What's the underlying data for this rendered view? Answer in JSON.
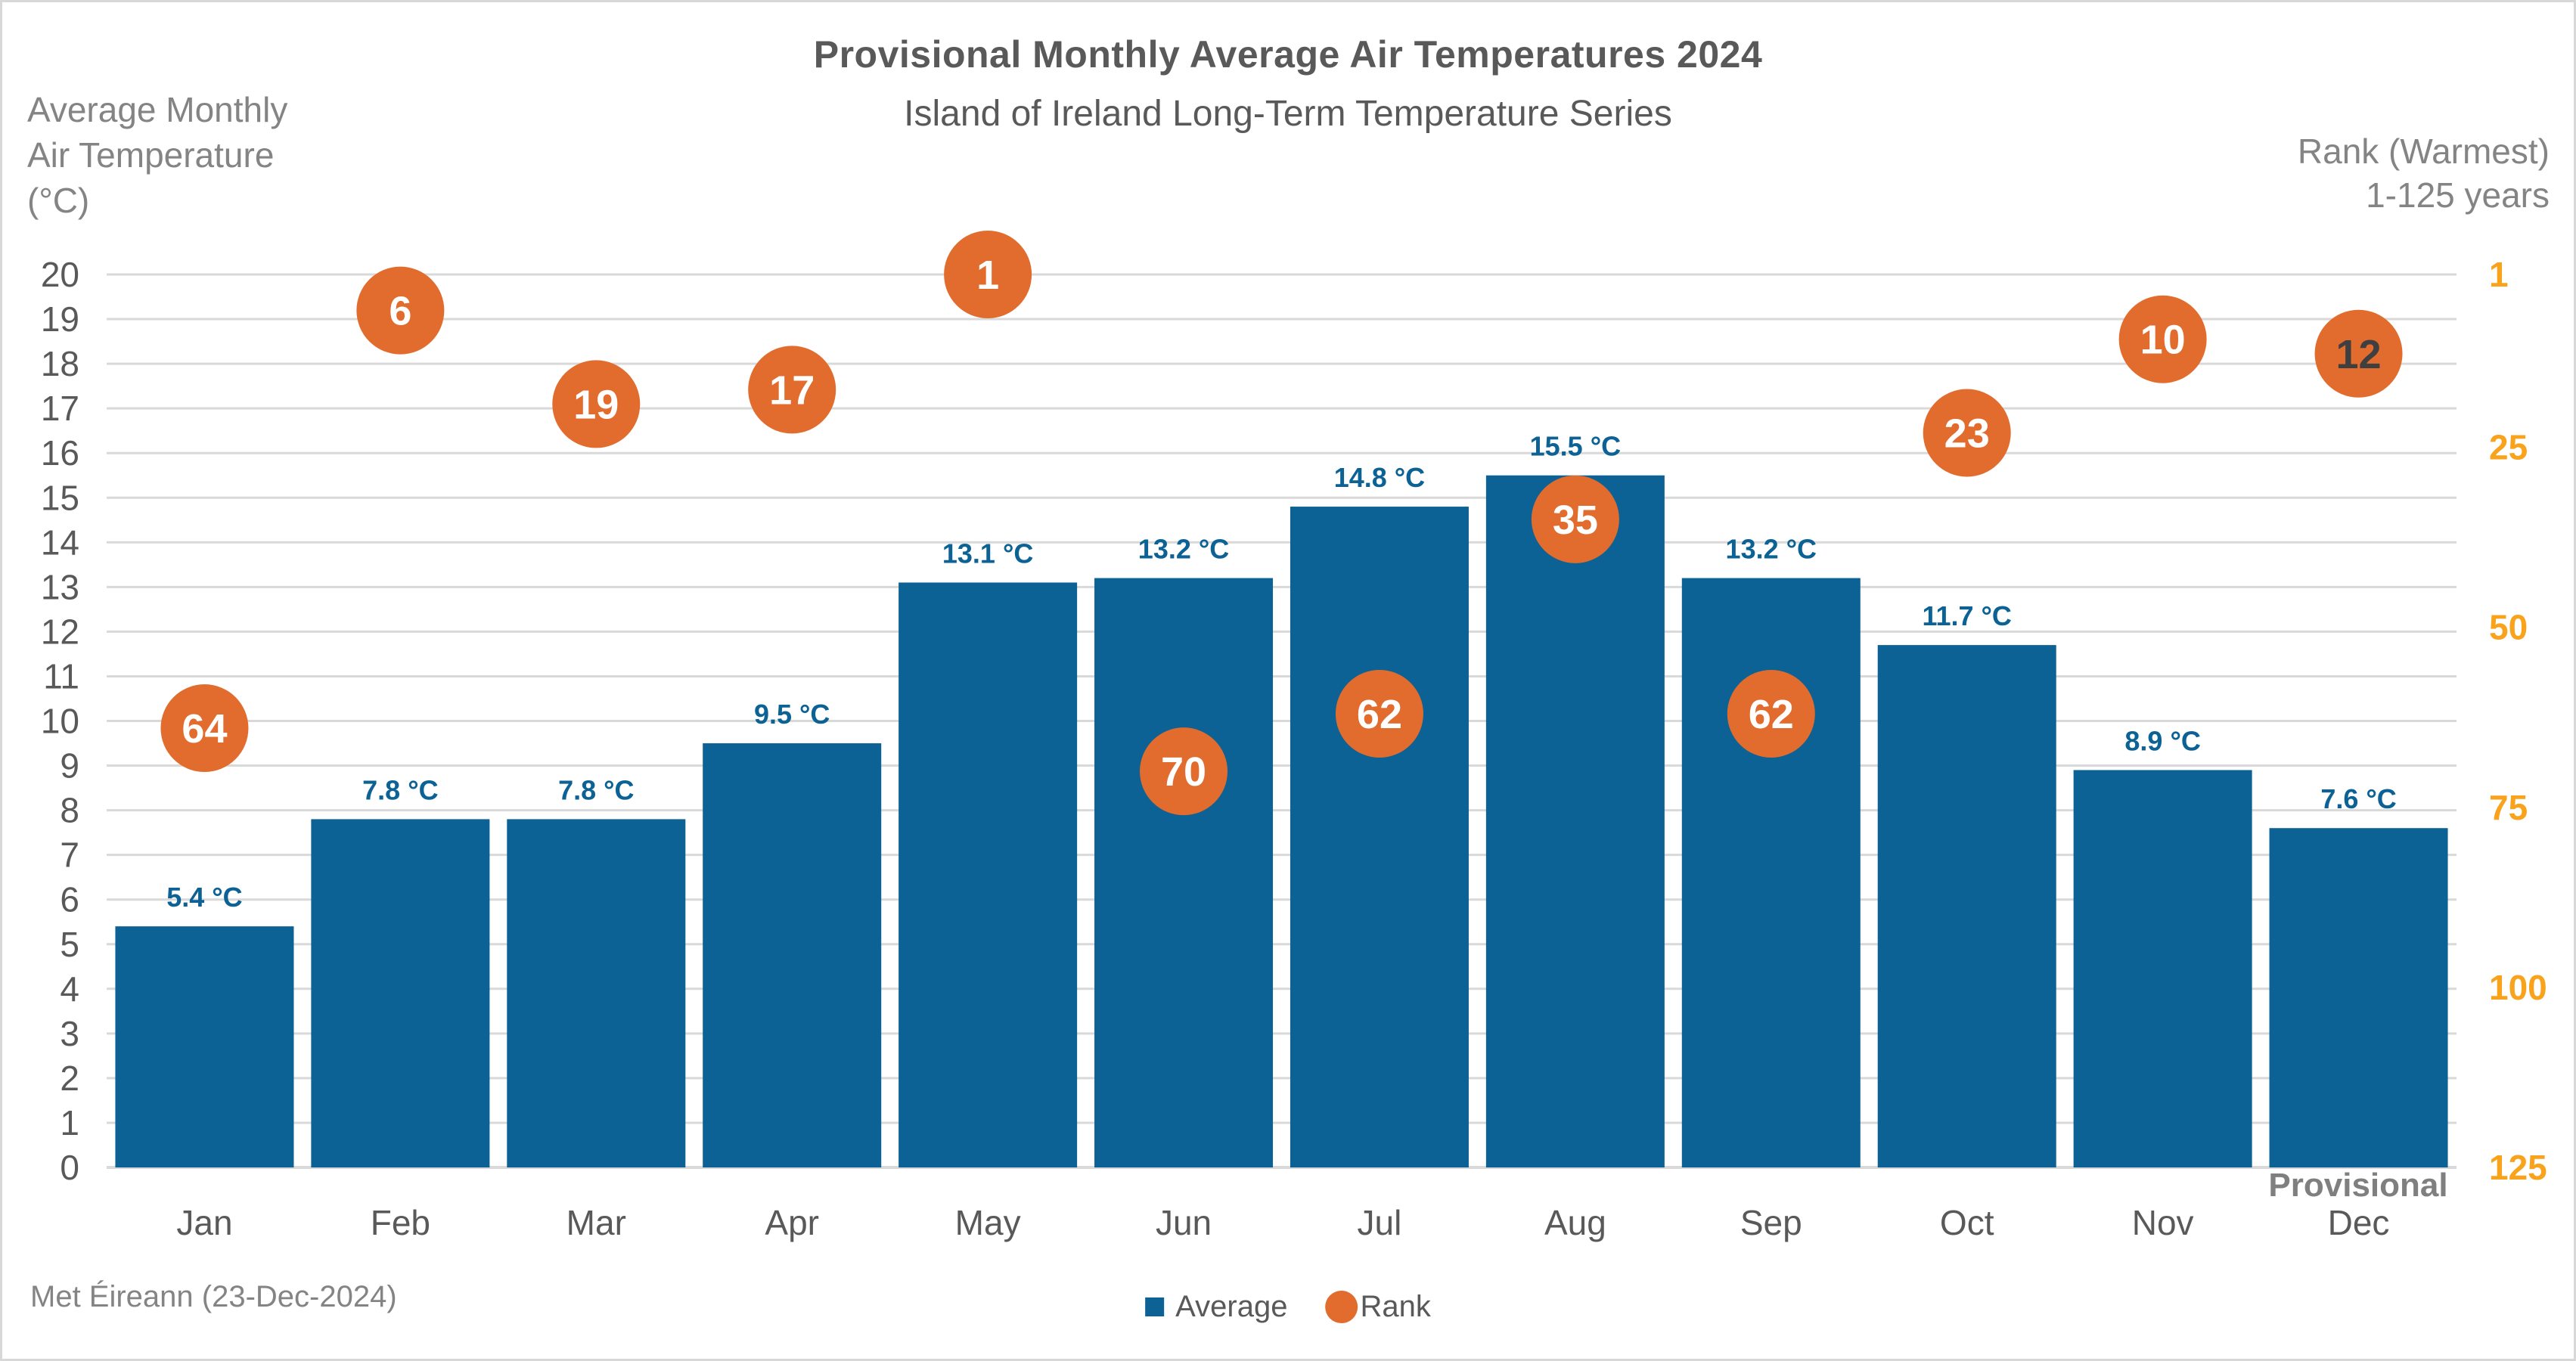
{
  "header": {
    "title": "Provisional Monthly Average Air Temperatures 2024",
    "subtitle": "Island of Ireland Long-Term Temperature Series"
  },
  "left_axis": {
    "title_lines": [
      "Average Monthly",
      "Air Temperature",
      "(°C)"
    ]
  },
  "right_axis": {
    "title_lines": [
      "Rank (Warmest)",
      "1-125 years"
    ]
  },
  "legend": {
    "items": [
      {
        "label": "Average",
        "marker": "square"
      },
      {
        "label": "Rank",
        "marker": "circle"
      }
    ]
  },
  "annotations": {
    "provisional": "Provisional"
  },
  "footer": {
    "source": "Met Éireann (23-Dec-2024)"
  },
  "colors": {
    "bar": "#0C6295",
    "value_label": "#0C6295",
    "marker": "#E26C2D",
    "marker_label": "#FFFFFF",
    "marker_label_dec": "#3F3F3F",
    "right_tick": "#F9A21B",
    "text_dark": "#595959",
    "text_mid": "#848484",
    "gridline": "#D9D9D9",
    "border": "#D8D8D8"
  },
  "chart_data": {
    "type": "bar",
    "title": "Provisional Monthly Average Air Temperatures 2024",
    "subtitle": "Island of Ireland Long-Term Temperature Series",
    "categories": [
      "Jan",
      "Feb",
      "Mar",
      "Apr",
      "May",
      "Jun",
      "Jul",
      "Aug",
      "Sep",
      "Oct",
      "Nov",
      "Dec"
    ],
    "series": [
      {
        "name": "Average",
        "type": "bar",
        "axis": "left",
        "unit": "°C",
        "values": [
          5.4,
          7.8,
          7.8,
          9.5,
          13.1,
          13.2,
          14.8,
          15.5,
          13.2,
          11.7,
          8.9,
          7.6
        ],
        "data_labels": [
          "5.4 °C",
          "7.8 °C",
          "7.8 °C",
          "9.5 °C",
          "13.1 °C",
          "13.2 °C",
          "14.8 °C",
          "15.5 °C",
          "13.2 °C",
          "11.7 °C",
          "8.9 °C",
          "7.6 °C"
        ]
      },
      {
        "name": "Rank",
        "type": "point",
        "axis": "right",
        "values": [
          64,
          6,
          19,
          17,
          1,
          70,
          62,
          35,
          62,
          23,
          10,
          12
        ],
        "label_colors": [
          "#FFFFFF",
          "#FFFFFF",
          "#FFFFFF",
          "#FFFFFF",
          "#FFFFFF",
          "#FFFFFF",
          "#FFFFFF",
          "#FFFFFF",
          "#FFFFFF",
          "#FFFFFF",
          "#FFFFFF",
          "#3F3F3F"
        ]
      }
    ],
    "left_axis": {
      "label": "Average Monthly Air Temperature (°C)",
      "min": 0,
      "max": 20,
      "tick_step": 1
    },
    "right_axis": {
      "label": "Rank (Warmest) 1-125 years",
      "min": 1,
      "max": 125,
      "ticks": [
        1,
        25,
        50,
        75,
        100,
        125
      ]
    },
    "grid": true,
    "legend_position": "bottom",
    "x_note": {
      "category": "Dec",
      "text": "Provisional"
    },
    "source": "Met Éireann (23-Dec-2024)"
  }
}
